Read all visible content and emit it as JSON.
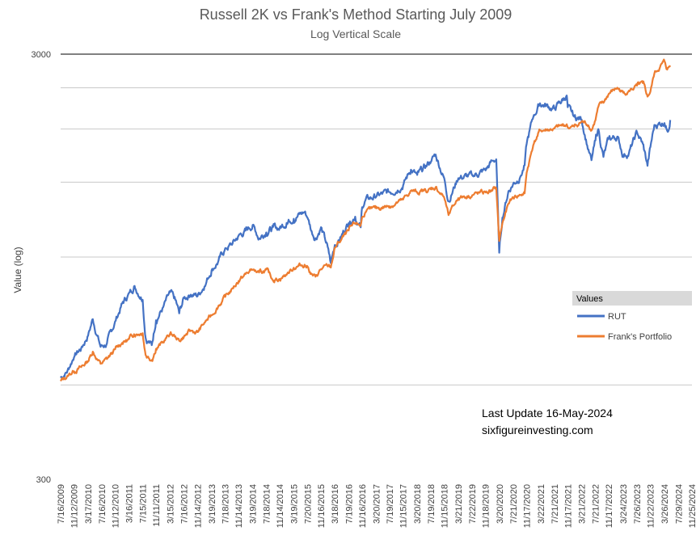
{
  "chart_data": {
    "type": "line",
    "title": "Russell 2K vs Frank's Method Starting July 2009",
    "subtitle": "Log Vertical Scale",
    "ylabel": "Value (log)",
    "xlabel": "",
    "y_scale": "log",
    "ylim": [
      300,
      3000
    ],
    "y_tick_labels": [
      "300",
      "3000"
    ],
    "grid": true,
    "x_tick_labels": [
      "7/16/2009",
      "11/12/2009",
      "3/17/2010",
      "7/16/2010",
      "11/12/2010",
      "3/16/2011",
      "7/15/2011",
      "11/11/2011",
      "3/15/2012",
      "7/16/2012",
      "11/14/2012",
      "3/19/2013",
      "7/18/2013",
      "11/14/2013",
      "3/19/2014",
      "7/18/2014",
      "11/14/2014",
      "3/19/2015",
      "7/20/2015",
      "11/16/2015",
      "3/18/2016",
      "7/19/2016",
      "11/16/2016",
      "3/20/2017",
      "7/19/2017",
      "11/15/2017",
      "3/20/2018",
      "7/19/2018",
      "11/15/2018",
      "3/21/2019",
      "7/22/2019",
      "11/18/2019",
      "3/20/2020",
      "7/21/2020",
      "11/17/2020",
      "3/22/2021",
      "7/21/2021",
      "11/17/2021",
      "3/21/2022",
      "7/21/2022",
      "11/17/2022",
      "3/24/2023",
      "7/26/2023",
      "11/22/2023",
      "3/26/2024",
      "7/29/2024",
      "11/25/2024"
    ],
    "legend": {
      "title": "Values",
      "position": "right"
    },
    "series": [
      {
        "name": "RUT",
        "color": "#4472C4",
        "x": [
          "2009-07-16",
          "2009-09-15",
          "2009-11-12",
          "2010-01-15",
          "2010-03-17",
          "2010-04-28",
          "2010-07-06",
          "2010-09-01",
          "2010-11-12",
          "2011-01-14",
          "2011-03-16",
          "2011-04-29",
          "2011-07-15",
          "2011-08-10",
          "2011-10-04",
          "2011-11-11",
          "2012-01-13",
          "2012-03-15",
          "2012-04-30",
          "2012-06-04",
          "2012-07-16",
          "2012-09-14",
          "2012-11-14",
          "2013-01-15",
          "2013-03-19",
          "2013-05-20",
          "2013-07-18",
          "2013-09-16",
          "2013-11-14",
          "2014-01-15",
          "2014-03-19",
          "2014-05-15",
          "2014-07-18",
          "2014-09-16",
          "2014-11-14",
          "2015-01-15",
          "2015-03-19",
          "2015-06-23",
          "2015-07-20",
          "2015-08-25",
          "2015-09-28",
          "2015-11-16",
          "2016-01-15",
          "2016-02-11",
          "2016-03-18",
          "2016-05-16",
          "2016-07-19",
          "2016-09-15",
          "2016-11-03",
          "2016-11-16",
          "2016-12-15",
          "2017-03-20",
          "2017-07-19",
          "2017-11-15",
          "2018-01-24",
          "2018-03-20",
          "2018-07-19",
          "2018-08-31",
          "2018-11-15",
          "2018-12-24",
          "2019-03-21",
          "2019-07-22",
          "2019-11-18",
          "2020-01-17",
          "2020-02-21",
          "2020-03-18",
          "2020-04-15",
          "2020-06-08",
          "2020-07-21",
          "2020-09-15",
          "2020-10-30",
          "2020-11-17",
          "2021-01-15",
          "2021-03-15",
          "2021-07-21",
          "2021-11-08",
          "2021-11-17",
          "2022-01-14",
          "2022-03-21",
          "2022-05-20",
          "2022-06-16",
          "2022-07-21",
          "2022-08-16",
          "2022-09-30",
          "2022-11-17",
          "2023-01-31",
          "2023-03-24",
          "2023-05-15",
          "2023-07-26",
          "2023-09-15",
          "2023-10-27",
          "2023-11-22",
          "2023-12-27",
          "2024-03-26",
          "2024-04-19",
          "2024-05-16"
        ],
        "values": [
          520,
          540,
          585,
          610,
          655,
          715,
          615,
          625,
          705,
          775,
          820,
          855,
          800,
          650,
          620,
          715,
          760,
          820,
          790,
          735,
          800,
          820,
          810,
          860,
          935,
          980,
          1045,
          1070,
          1120,
          1150,
          1190,
          1110,
          1150,
          1170,
          1170,
          1210,
          1240,
          1275,
          1240,
          1150,
          1110,
          1175,
          1050,
          965,
          1070,
          1120,
          1210,
          1250,
          1170,
          1310,
          1360,
          1390,
          1420,
          1480,
          1610,
          1550,
          1680,
          1740,
          1530,
          1360,
          1540,
          1550,
          1600,
          1680,
          1700,
          1020,
          1240,
          1430,
          1490,
          1540,
          1640,
          1840,
          2140,
          2300,
          2230,
          2400,
          2240,
          2130,
          2110,
          1790,
          1680,
          1870,
          2000,
          1720,
          1890,
          1920,
          1740,
          1760,
          1960,
          1840,
          1640,
          1810,
          2040,
          2080,
          1990,
          2100
        ],
        "points": [
          [
            "2009-07-16",
            520
          ],
          [
            "2009-09-15",
            540
          ],
          [
            "2009-11-12",
            585
          ],
          [
            "2010-01-15",
            610
          ],
          [
            "2010-03-17",
            655
          ],
          [
            "2010-04-28",
            715
          ],
          [
            "2010-07-06",
            615
          ],
          [
            "2010-09-01",
            625
          ],
          [
            "2010-11-12",
            705
          ],
          [
            "2011-01-14",
            775
          ],
          [
            "2011-03-16",
            820
          ],
          [
            "2011-04-29",
            855
          ],
          [
            "2011-07-15",
            800
          ],
          [
            "2011-08-10",
            650
          ],
          [
            "2011-10-04",
            620
          ],
          [
            "2011-11-11",
            715
          ],
          [
            "2012-01-13",
            760
          ],
          [
            "2012-03-15",
            820
          ],
          [
            "2012-04-30",
            790
          ],
          [
            "2012-06-04",
            735
          ],
          [
            "2012-07-16",
            800
          ],
          [
            "2012-09-14",
            820
          ],
          [
            "2012-11-14",
            810
          ],
          [
            "2013-01-15",
            860
          ],
          [
            "2013-03-19",
            935
          ],
          [
            "2013-05-20",
            980
          ],
          [
            "2013-07-18",
            1045
          ],
          [
            "2013-09-16",
            1070
          ],
          [
            "2013-11-14",
            1120
          ],
          [
            "2014-01-15",
            1150
          ],
          [
            "2014-03-19",
            1190
          ],
          [
            "2014-05-15",
            1110
          ],
          [
            "2014-07-18",
            1150
          ],
          [
            "2014-09-16",
            1170
          ],
          [
            "2014-11-14",
            1170
          ],
          [
            "2015-01-15",
            1210
          ],
          [
            "2015-03-19",
            1240
          ],
          [
            "2015-06-23",
            1275
          ],
          [
            "2015-07-20",
            1240
          ],
          [
            "2015-08-25",
            1150
          ],
          [
            "2015-09-28",
            1110
          ],
          [
            "2015-11-16",
            1175
          ],
          [
            "2016-01-15",
            1050
          ],
          [
            "2016-02-11",
            965
          ],
          [
            "2016-03-18",
            1070
          ],
          [
            "2016-05-16",
            1120
          ],
          [
            "2016-07-19",
            1210
          ],
          [
            "2016-09-15",
            1250
          ],
          [
            "2016-11-03",
            1170
          ],
          [
            "2016-11-16",
            1310
          ],
          [
            "2016-12-15",
            1360
          ],
          [
            "2017-03-20",
            1390
          ],
          [
            "2017-07-19",
            1420
          ],
          [
            "2017-11-15",
            1480
          ],
          [
            "2018-01-24",
            1610
          ],
          [
            "2018-03-20",
            1550
          ],
          [
            "2018-07-19",
            1680
          ],
          [
            "2018-08-31",
            1740
          ],
          [
            "2018-11-15",
            1530
          ],
          [
            "2018-12-24",
            1360
          ],
          [
            "2019-03-21",
            1540
          ],
          [
            "2019-07-22",
            1550
          ],
          [
            "2019-11-18",
            1600
          ],
          [
            "2020-01-17",
            1680
          ],
          [
            "2020-02-21",
            1700
          ],
          [
            "2020-03-18",
            1020
          ],
          [
            "2020-04-15",
            1240
          ],
          [
            "2020-06-08",
            1430
          ],
          [
            "2020-07-21",
            1490
          ],
          [
            "2020-09-15",
            1540
          ],
          [
            "2020-10-30",
            1640
          ],
          [
            "2020-11-17",
            1840
          ],
          [
            "2021-01-15",
            2140
          ],
          [
            "2021-03-15",
            2300
          ],
          [
            "2021-07-21",
            2230
          ],
          [
            "2021-11-08",
            2400
          ],
          [
            "2021-11-17",
            2240
          ],
          [
            "2022-01-14",
            2130
          ],
          [
            "2022-03-21",
            2110
          ],
          [
            "2022-05-20",
            1790
          ],
          [
            "2022-06-16",
            1680
          ],
          [
            "2022-07-21",
            1870
          ],
          [
            "2022-08-16",
            2000
          ],
          [
            "2022-09-30",
            1720
          ],
          [
            "2022-11-17",
            1890
          ],
          [
            "2023-01-31",
            1920
          ],
          [
            "2023-03-24",
            1740
          ],
          [
            "2023-05-15",
            1760
          ],
          [
            "2023-07-26",
            1960
          ],
          [
            "2023-09-15",
            1840
          ],
          [
            "2023-10-27",
            1640
          ],
          [
            "2023-11-22",
            1810
          ],
          [
            "2023-12-27",
            2040
          ],
          [
            "2024-03-26",
            2080
          ],
          [
            "2024-04-19",
            1990
          ],
          [
            "2024-05-16",
            2100
          ]
        ]
      },
      {
        "name": "Frank's Portfolio",
        "color": "#ED7D31",
        "points": [
          [
            "2009-07-16",
            510
          ],
          [
            "2009-09-15",
            525
          ],
          [
            "2009-11-12",
            540
          ],
          [
            "2010-01-15",
            550
          ],
          [
            "2010-03-17",
            570
          ],
          [
            "2010-04-28",
            600
          ],
          [
            "2010-07-06",
            560
          ],
          [
            "2010-09-01",
            575
          ],
          [
            "2010-11-12",
            605
          ],
          [
            "2011-01-14",
            630
          ],
          [
            "2011-03-16",
            640
          ],
          [
            "2011-04-29",
            660
          ],
          [
            "2011-07-15",
            665
          ],
          [
            "2011-08-10",
            590
          ],
          [
            "2011-10-04",
            575
          ],
          [
            "2011-11-11",
            610
          ],
          [
            "2012-01-13",
            630
          ],
          [
            "2012-03-15",
            660
          ],
          [
            "2012-04-30",
            650
          ],
          [
            "2012-06-04",
            635
          ],
          [
            "2012-07-16",
            650
          ],
          [
            "2012-09-14",
            670
          ],
          [
            "2012-11-14",
            665
          ],
          [
            "2013-01-15",
            700
          ],
          [
            "2013-03-19",
            730
          ],
          [
            "2013-05-20",
            770
          ],
          [
            "2013-07-18",
            805
          ],
          [
            "2013-09-16",
            840
          ],
          [
            "2013-11-14",
            880
          ],
          [
            "2014-01-15",
            910
          ],
          [
            "2014-03-19",
            935
          ],
          [
            "2014-05-15",
            915
          ],
          [
            "2014-07-18",
            930
          ],
          [
            "2014-09-16",
            885
          ],
          [
            "2014-11-14",
            890
          ],
          [
            "2015-01-15",
            910
          ],
          [
            "2015-03-19",
            945
          ],
          [
            "2015-06-23",
            960
          ],
          [
            "2015-07-20",
            950
          ],
          [
            "2015-08-25",
            910
          ],
          [
            "2015-09-28",
            895
          ],
          [
            "2015-11-16",
            935
          ],
          [
            "2016-01-15",
            950
          ],
          [
            "2016-02-11",
            945
          ],
          [
            "2016-03-18",
            1050
          ],
          [
            "2016-05-16",
            1100
          ],
          [
            "2016-07-19",
            1150
          ],
          [
            "2016-09-15",
            1200
          ],
          [
            "2016-11-03",
            1190
          ],
          [
            "2016-11-16",
            1240
          ],
          [
            "2016-12-15",
            1280
          ],
          [
            "2017-03-20",
            1300
          ],
          [
            "2017-07-19",
            1320
          ],
          [
            "2017-11-15",
            1360
          ],
          [
            "2018-01-24",
            1430
          ],
          [
            "2018-03-20",
            1420
          ],
          [
            "2018-07-19",
            1440
          ],
          [
            "2018-08-31",
            1460
          ],
          [
            "2018-11-15",
            1380
          ],
          [
            "2018-12-24",
            1250
          ],
          [
            "2019-03-21",
            1380
          ],
          [
            "2019-07-22",
            1400
          ],
          [
            "2019-11-18",
            1420
          ],
          [
            "2020-01-17",
            1430
          ],
          [
            "2020-02-21",
            1450
          ],
          [
            "2020-03-18",
            1090
          ],
          [
            "2020-04-15",
            1200
          ],
          [
            "2020-06-08",
            1330
          ],
          [
            "2020-07-21",
            1380
          ],
          [
            "2020-09-15",
            1400
          ],
          [
            "2020-10-30",
            1410
          ],
          [
            "2020-11-17",
            1580
          ],
          [
            "2021-01-15",
            1840
          ],
          [
            "2021-03-15",
            1980
          ],
          [
            "2021-07-21",
            2000
          ],
          [
            "2021-11-08",
            2050
          ],
          [
            "2021-11-17",
            2020
          ],
          [
            "2022-01-14",
            2020
          ],
          [
            "2022-03-21",
            2080
          ],
          [
            "2022-05-20",
            2050
          ],
          [
            "2022-06-16",
            1990
          ],
          [
            "2022-07-21",
            2100
          ],
          [
            "2022-08-16",
            2250
          ],
          [
            "2022-09-30",
            2300
          ],
          [
            "2022-11-17",
            2420
          ],
          [
            "2023-01-31",
            2500
          ],
          [
            "2023-03-24",
            2430
          ],
          [
            "2023-05-15",
            2460
          ],
          [
            "2023-07-26",
            2520
          ],
          [
            "2023-09-15",
            2550
          ],
          [
            "2023-10-27",
            2380
          ],
          [
            "2023-11-22",
            2450
          ],
          [
            "2023-12-27",
            2700
          ],
          [
            "2024-03-26",
            2880
          ],
          [
            "2024-04-19",
            2760
          ],
          [
            "2024-05-16",
            2820
          ]
        ]
      }
    ]
  },
  "annotations": {
    "update_line": "Last Update 16-May-2024",
    "site_line": "sixfigureinvesting.com"
  }
}
